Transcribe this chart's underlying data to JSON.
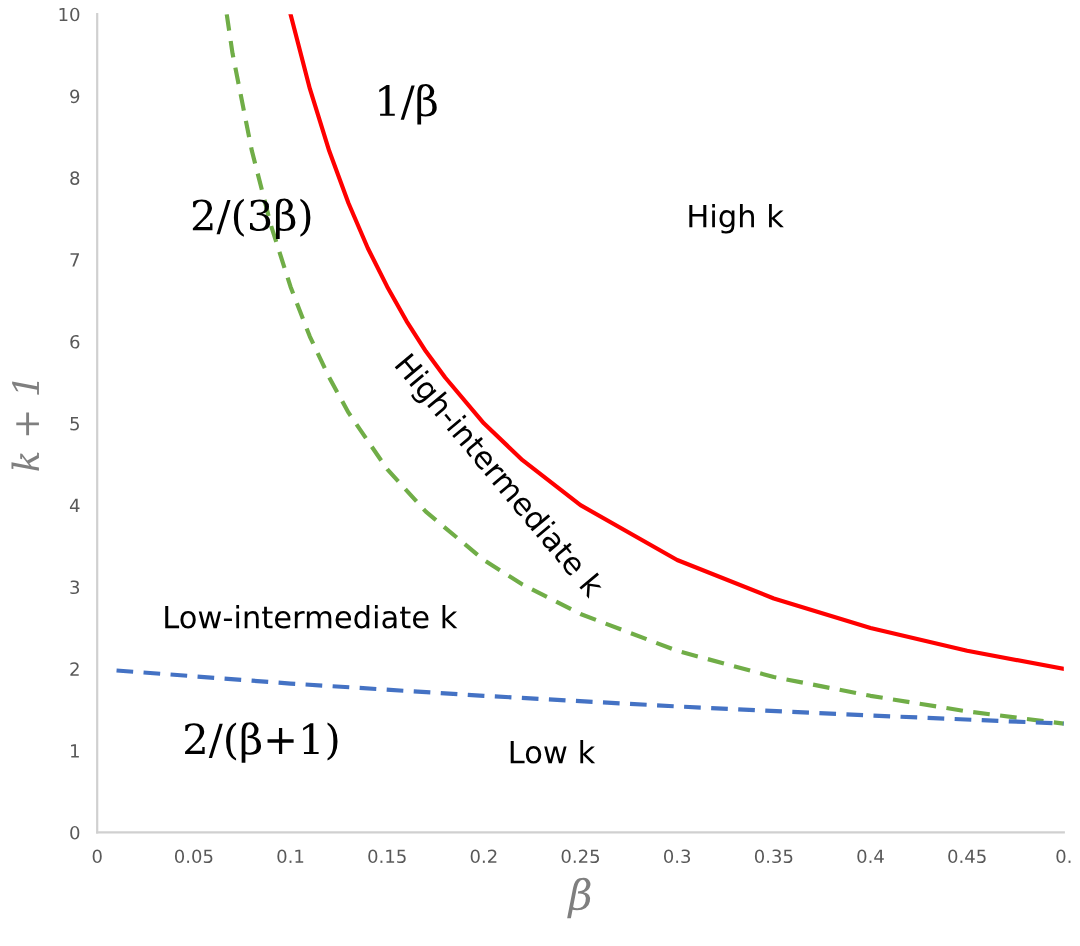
{
  "chart_data": {
    "type": "line",
    "xlabel": "β",
    "ylabel": "k + 1",
    "series": [
      {
        "color": "#ff0000",
        "line_style": "solid",
        "x": [
          0.1,
          0.11,
          0.12,
          0.13,
          0.14,
          0.15,
          0.16,
          0.17,
          0.18,
          0.2,
          0.22,
          0.25,
          0.3,
          0.35,
          0.4,
          0.45,
          0.5
        ],
        "values": [
          10,
          9.09,
          8.33,
          7.69,
          7.14,
          6.67,
          6.25,
          5.88,
          5.56,
          5.0,
          4.55,
          4.0,
          3.33,
          2.86,
          2.5,
          2.22,
          2.0
        ]
      },
      {
        "color": "#70ad47",
        "line_style": "dashed",
        "x": [
          0.067,
          0.07,
          0.08,
          0.09,
          0.1,
          0.11,
          0.12,
          0.13,
          0.15,
          0.17,
          0.2,
          0.22,
          0.25,
          0.3,
          0.35,
          0.4,
          0.45,
          0.5
        ],
        "values": [
          10,
          9.52,
          8.33,
          7.41,
          6.67,
          6.06,
          5.56,
          5.13,
          4.44,
          3.92,
          3.33,
          3.03,
          2.67,
          2.22,
          1.9,
          1.67,
          1.48,
          1.33
        ]
      },
      {
        "color": "#4472c4",
        "line_style": "dashed",
        "x": [
          0.01,
          0.1,
          0.2,
          0.3,
          0.4,
          0.5
        ],
        "values": [
          1.98,
          1.82,
          1.67,
          1.54,
          1.43,
          1.33
        ]
      }
    ],
    "xlim": [
      0,
      0.5
    ],
    "ylim": [
      0,
      10
    ],
    "xticks": [
      0,
      0.05,
      0.1,
      0.15,
      0.2,
      0.25,
      0.3,
      0.35,
      0.4,
      0.45,
      {
        "value": 0.5,
        "label": "0."
      }
    ],
    "yticks": [
      0,
      1,
      2,
      3,
      4,
      5,
      6,
      7,
      8,
      9,
      10
    ],
    "grid": false,
    "legend": false,
    "marker": "none",
    "annotations": [
      "1/β",
      "2/(3β)",
      "2/(β+1)",
      "High k",
      "High-intermediate k",
      "Low-intermediate k",
      "Low k"
    ]
  }
}
